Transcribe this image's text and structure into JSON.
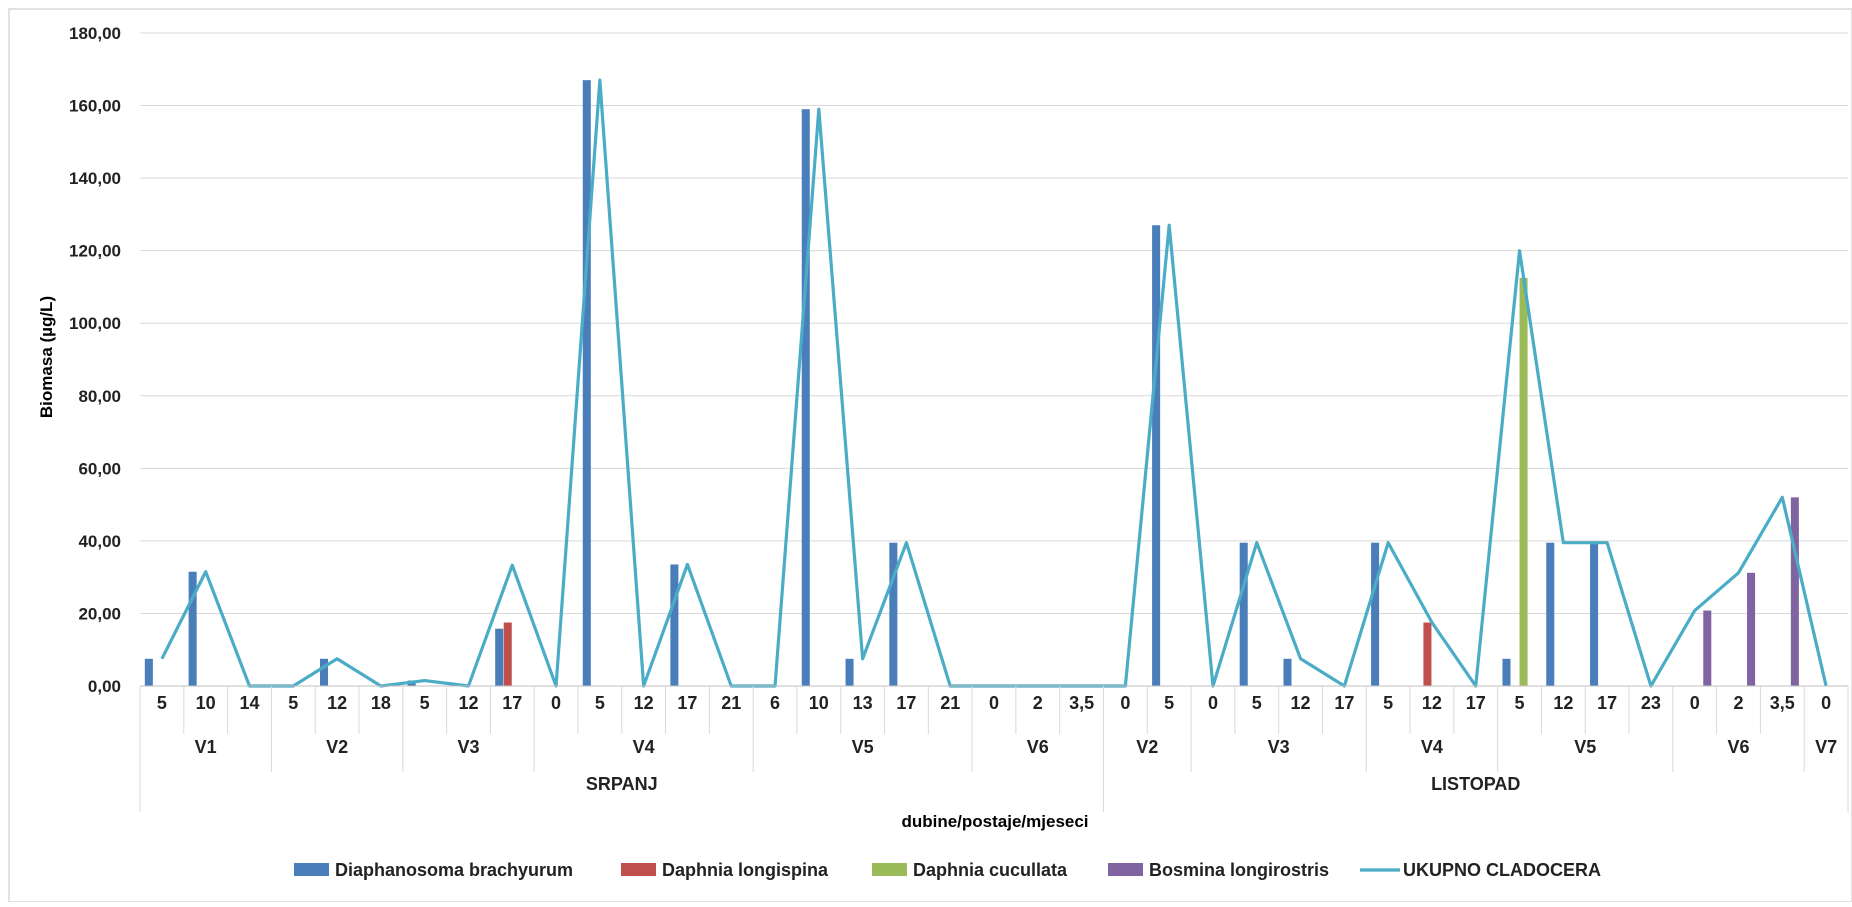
{
  "chart_data": {
    "type": "bar",
    "xlabel": "dubine/postaje/mjeseci",
    "ylabel": "Biomasa (µg/L)",
    "ylim": [
      0,
      180
    ],
    "y_ticks": [
      "0,00",
      "20,00",
      "40,00",
      "60,00",
      "80,00",
      "100,00",
      "120,00",
      "140,00",
      "160,00",
      "180,00"
    ],
    "grid": "horizontal",
    "legend_position": "bottom",
    "categories": [
      "5",
      "10",
      "14",
      "5",
      "12",
      "18",
      "5",
      "12",
      "17",
      "0",
      "5",
      "12",
      "17",
      "21",
      "6",
      "10",
      "13",
      "17",
      "21",
      "0",
      "2",
      "3,5",
      "0",
      "5",
      "0",
      "5",
      "12",
      "17",
      "5",
      "12",
      "17",
      "5",
      "12",
      "17",
      "23",
      "0",
      "2",
      "3,5",
      "0"
    ],
    "stations": [
      {
        "label": "V1",
        "count": 3
      },
      {
        "label": "V2",
        "count": 3
      },
      {
        "label": "V3",
        "count": 3
      },
      {
        "label": "V4",
        "count": 5
      },
      {
        "label": "V5",
        "count": 5
      },
      {
        "label": "V6",
        "count": 3
      },
      {
        "label": "V2",
        "count": 2
      },
      {
        "label": "V3",
        "count": 4
      },
      {
        "label": "V4",
        "count": 3
      },
      {
        "label": "V5",
        "count": 4
      },
      {
        "label": "V6",
        "count": 3
      },
      {
        "label": "V7",
        "count": 1
      }
    ],
    "months": [
      {
        "label": "SRPANJ",
        "count": 22
      },
      {
        "label": "LISTOPAD",
        "count": 17
      }
    ],
    "series": [
      {
        "name": "Diaphanosoma  brachyurum",
        "type": "bar",
        "color": "#4a7ebb",
        "values": [
          7.5,
          31.5,
          0,
          0,
          7.5,
          0,
          1.5,
          0,
          15.8,
          0,
          167,
          0,
          33.5,
          0,
          0,
          159,
          7.5,
          39.5,
          0,
          0,
          0,
          0,
          0,
          127,
          0,
          39.5,
          7.5,
          0,
          39.5,
          0,
          0,
          7.5,
          39.5,
          39.5,
          0,
          0,
          0,
          0,
          0
        ]
      },
      {
        "name": "Daphnia longispina",
        "type": "bar",
        "color": "#c0504d",
        "values": [
          0,
          0,
          0,
          0,
          0,
          0,
          0,
          0,
          17.5,
          0,
          0,
          0,
          0,
          0,
          0,
          0,
          0,
          0,
          0,
          0,
          0,
          0,
          0,
          0,
          0,
          0,
          0,
          0,
          0,
          17.5,
          0,
          0,
          0,
          0,
          0,
          0,
          0,
          0,
          0
        ]
      },
      {
        "name": "Daphnia cucullata",
        "type": "bar",
        "color": "#9bbb59",
        "values": [
          0,
          0,
          0,
          0,
          0,
          0,
          0,
          0,
          0,
          0,
          0,
          0,
          0,
          0,
          0,
          0,
          0,
          0,
          0,
          0,
          0,
          0,
          0,
          0,
          0,
          0,
          0,
          0,
          0,
          0,
          0,
          112.5,
          0,
          0,
          0,
          0,
          0,
          0,
          0
        ]
      },
      {
        "name": "Bosmina longirostris",
        "type": "bar",
        "color": "#8064a2",
        "values": [
          0,
          0,
          0,
          0,
          0,
          0,
          0,
          0,
          0,
          0,
          0,
          0,
          0,
          0,
          0,
          0,
          0,
          0,
          0,
          0,
          0,
          0,
          0,
          0,
          0,
          0,
          0,
          0,
          0,
          0,
          0,
          0,
          0,
          0,
          0,
          20.8,
          31.2,
          52,
          0
        ]
      },
      {
        "name": "UKUPNO CLADOCERA",
        "type": "line",
        "color": "#4bacc6",
        "values": [
          7.5,
          31.5,
          0,
          0,
          7.5,
          0,
          1.5,
          0,
          33.3,
          0,
          167,
          0,
          33.5,
          0,
          0,
          159,
          7.5,
          39.5,
          0,
          0,
          0,
          0,
          0,
          127,
          0,
          39.5,
          7.5,
          0,
          39.5,
          17.5,
          0,
          120,
          39.5,
          39.5,
          0,
          20.8,
          31.2,
          52,
          0
        ]
      }
    ]
  }
}
